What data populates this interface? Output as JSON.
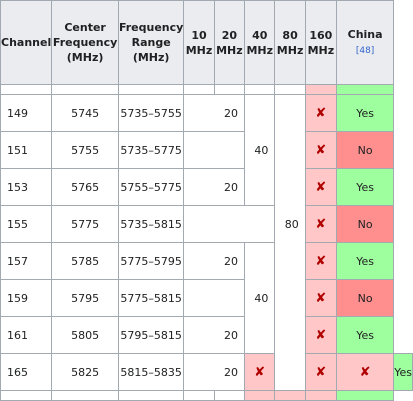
{
  "headers": {
    "channel": "Channel",
    "center_frequency": "Center Frequency (MHz)",
    "frequency_range": "Frequency Range (MHz)",
    "w10": "10 MHz",
    "w20": "20 MHz",
    "w40": "40 MHz",
    "w80": "80 MHz",
    "w160": "160 MHz",
    "china": "China",
    "china_ref": "[48]"
  },
  "rows": [
    {
      "channel": "149",
      "center": "5745",
      "range": "5735–5755",
      "w20": "20",
      "china": "Yes"
    },
    {
      "channel": "151",
      "center": "5755",
      "range": "5735–5775",
      "china": "No"
    },
    {
      "channel": "153",
      "center": "5765",
      "range": "5755–5775",
      "w20": "20",
      "china": "Yes"
    },
    {
      "channel": "155",
      "center": "5775",
      "range": "5735–5815",
      "china": "No"
    },
    {
      "channel": "157",
      "center": "5785",
      "range": "5775–5795",
      "w20": "20",
      "china": "Yes"
    },
    {
      "channel": "159",
      "center": "5795",
      "range": "5775–5815",
      "china": "No"
    },
    {
      "channel": "161",
      "center": "5805",
      "range": "5795–5815",
      "w20": "20",
      "china": "Yes"
    },
    {
      "channel": "165",
      "center": "5825",
      "range": "5815–5835",
      "w20": "20",
      "china": "Yes"
    }
  ],
  "merged": {
    "w40_a": "40",
    "w40_b": "40",
    "w80": "80"
  },
  "unsupported_mark": "✘",
  "colors": {
    "header_bg": "#eaecf0",
    "yes_bg": "#9eff9e",
    "no_bg": "#ff8f8f",
    "unsupported_bg": "#ffc7c7",
    "unsupported_mark": "#b00000"
  }
}
